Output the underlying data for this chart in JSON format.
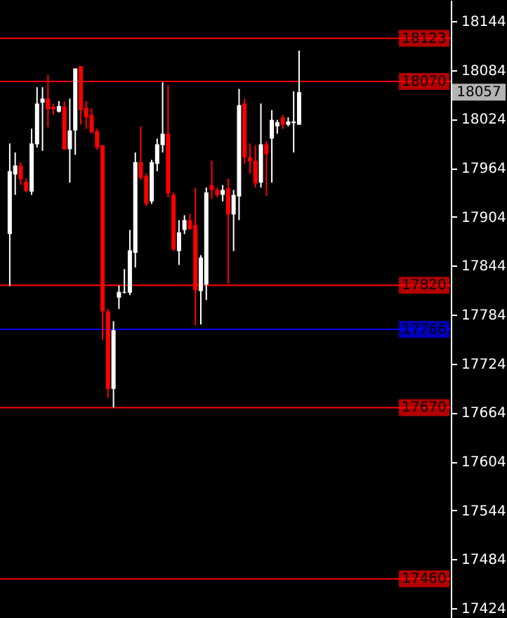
{
  "chart_data": {
    "type": "candlestick",
    "categories": [
      null,
      null,
      null,
      null,
      null,
      null,
      null,
      null,
      null,
      null,
      null,
      null,
      null,
      null,
      null,
      null,
      null,
      null,
      null,
      null,
      null,
      null,
      null,
      null,
      null,
      null,
      null,
      null,
      null,
      null,
      null,
      null,
      null,
      null,
      null,
      null,
      null,
      null,
      null,
      null,
      null,
      null,
      null,
      null,
      null,
      null,
      null,
      null,
      null,
      null,
      null,
      null,
      null,
      null,
      null,
      null,
      null,
      null,
      null,
      null,
      null,
      null,
      null,
      null,
      null,
      null,
      null,
      null,
      null,
      null,
      null,
      null,
      null,
      null,
      null,
      null,
      null,
      null,
      null,
      null
    ],
    "ohlc": [
      [
        17883,
        17994,
        17819,
        17960
      ],
      [
        17956,
        17983,
        17931,
        17967
      ],
      [
        17967,
        17971,
        17943,
        17950
      ],
      [
        17947,
        17951,
        17934,
        17936
      ],
      [
        17935,
        18012,
        17931,
        17994
      ],
      [
        17993,
        18063,
        17989,
        18043
      ],
      [
        18044,
        18063,
        17985,
        18049
      ],
      [
        18049,
        18078,
        18014,
        18036
      ],
      [
        18039,
        18043,
        18029,
        18036
      ],
      [
        18033,
        18046,
        18032,
        18040
      ],
      [
        18039,
        18046,
        17986,
        17987
      ],
      [
        17987,
        18049,
        17946,
        18010
      ],
      [
        18010,
        18086,
        17980,
        18086
      ],
      [
        18089,
        18089,
        18017,
        18035
      ],
      [
        18038,
        18046,
        18012,
        18026
      ],
      [
        18029,
        18037,
        18006,
        18008
      ],
      [
        18009,
        18012,
        17986,
        17989
      ],
      [
        17992,
        17992,
        17753,
        17788
      ],
      [
        17788,
        17791,
        17682,
        17693
      ],
      [
        17693,
        17776,
        17670,
        17765
      ],
      [
        17805,
        17820,
        17791,
        17812
      ],
      [
        17811,
        17840,
        17810,
        17812
      ],
      [
        17811,
        17888,
        17808,
        17863
      ],
      [
        17860,
        17983,
        17842,
        17971
      ],
      [
        17971,
        18015,
        17949,
        17952
      ],
      [
        17954,
        17957,
        17917,
        17920
      ],
      [
        17923,
        17974,
        17920,
        17971
      ],
      [
        17969,
        18000,
        17960,
        17993
      ],
      [
        17992,
        18069,
        17983,
        18006
      ],
      [
        18006,
        18066,
        17928,
        17933
      ],
      [
        17931,
        17934,
        17862,
        17864
      ],
      [
        17862,
        17900,
        17845,
        17885
      ],
      [
        17888,
        17906,
        17883,
        17900
      ],
      [
        17900,
        17908,
        17888,
        17889
      ],
      [
        17894,
        17940,
        17771,
        17814
      ],
      [
        17813,
        17857,
        17772,
        17854
      ],
      [
        17821,
        17940,
        17802,
        17934
      ],
      [
        17943,
        17973,
        17926,
        17937
      ],
      [
        17937,
        17940,
        17928,
        17931
      ],
      [
        17931,
        17943,
        17923,
        17937
      ],
      [
        17939,
        17951,
        17822,
        17907
      ],
      [
        17907,
        17937,
        17862,
        17931
      ],
      [
        17929,
        18061,
        17900,
        18041
      ],
      [
        18043,
        18049,
        17969,
        17977
      ],
      [
        17977,
        17994,
        17957,
        17972
      ],
      [
        17973,
        17992,
        17940,
        17945
      ],
      [
        17946,
        18043,
        17940,
        17993
      ],
      [
        17993,
        17997,
        17930,
        17981
      ],
      [
        18000,
        18035,
        17946,
        18023
      ],
      [
        18015,
        18023,
        18006,
        18020
      ],
      [
        18026,
        18029,
        18012,
        18017
      ],
      [
        18017,
        18026,
        18015,
        18021
      ],
      [
        18019,
        18058,
        17983,
        18021
      ],
      [
        18017,
        18108,
        18017,
        18057
      ],
      null,
      null,
      null,
      null,
      null,
      null,
      null,
      null,
      null,
      null,
      null,
      null,
      null,
      null,
      null,
      null,
      null,
      null,
      null,
      null,
      null,
      null,
      null,
      null,
      null,
      null
    ],
    "colors": [
      "#ffffff",
      "#ffffff",
      "#ff0000",
      "#ff0000",
      "#ffffff",
      "#ffffff",
      "#ffffff",
      "#ff0000",
      "#ff0000",
      "#ffffff",
      "#ff0000",
      "#ffffff",
      "#ffffff",
      "#ff0000",
      "#ff0000",
      "#ff0000",
      "#ff0000",
      "#ff0000",
      "#ff0000",
      "#ffffff",
      "#ffffff",
      "#ffffff",
      "#ffffff",
      "#ffffff",
      "#ff0000",
      "#ff0000",
      "#ffffff",
      "#ffffff",
      "#ffffff",
      "#ff0000",
      "#ff0000",
      "#ffffff",
      "#ffffff",
      "#ff0000",
      "#ff0000",
      "#ffffff",
      "#ffffff",
      "#ff0000",
      "#ff0000",
      "#ffffff",
      "#ff0000",
      "#ffffff",
      "#ffffff",
      "#ff0000",
      "#ff0000",
      "#ff0000",
      "#ffffff",
      "#ff0000",
      "#ffffff",
      "#ffffff",
      "#ff0000",
      "#ffffff",
      "#ffffff",
      "#ffffff",
      null,
      null,
      null,
      null,
      null,
      null,
      null,
      null,
      null,
      null,
      null,
      null,
      null,
      null,
      null,
      null,
      null,
      null,
      null,
      null,
      null,
      null,
      null,
      null,
      null,
      null
    ],
    "ylim": [
      17412,
      18170
    ],
    "yticks": [
      17424,
      17484,
      17544,
      17604,
      17664,
      17724,
      17784,
      17844,
      17904,
      17964,
      18024,
      18084,
      18144
    ],
    "ref_lines": [
      {
        "axis": "y",
        "value": 18123,
        "label": "18123",
        "color": "#ff0000"
      },
      {
        "axis": "y",
        "value": 18070,
        "label": "18070",
        "color": "#ff0000"
      },
      {
        "axis": "y",
        "value": 17820,
        "label": "17820",
        "color": "#ff0000"
      },
      {
        "axis": "y",
        "value": 17766,
        "label": "17766",
        "color": "#0000ff"
      },
      {
        "axis": "y",
        "value": 17670,
        "label": "17670",
        "color": "#ff0000"
      },
      {
        "axis": "y",
        "value": 17460,
        "label": "17460",
        "color": "#ff0000"
      }
    ],
    "annotations": [
      {
        "text": "18057",
        "y": 18057
      }
    ],
    "grid": false
  }
}
